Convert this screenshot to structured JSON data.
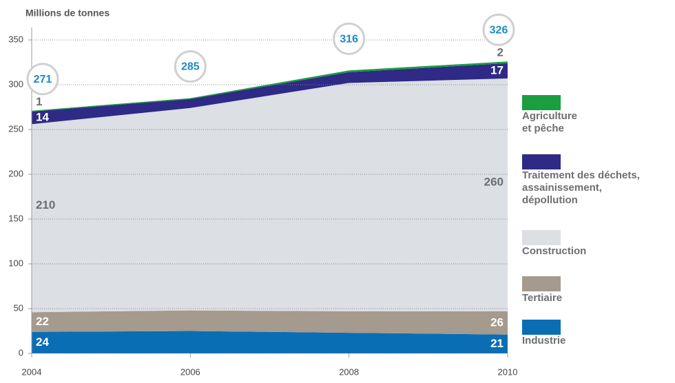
{
  "chart_data": {
    "type": "stacked-area",
    "y_label": "Millions de tonnes",
    "x": [
      2004,
      2006,
      2008,
      2010
    ],
    "xlim": [
      2004,
      2010
    ],
    "xticks": [
      2004,
      2006,
      2008,
      2010
    ],
    "ylim": [
      0,
      350
    ],
    "yticks": [
      0,
      50,
      100,
      150,
      200,
      250,
      300,
      350
    ],
    "grid": true,
    "totals": [
      271,
      285,
      316,
      326
    ],
    "series": [
      {
        "name": "Industrie",
        "color": "#0a6eb4",
        "values": [
          24,
          25,
          23,
          21
        ]
      },
      {
        "name": "Tertiaire",
        "color": "#a59a8e",
        "values": [
          22,
          23,
          24,
          26
        ]
      },
      {
        "name": "Construction",
        "color": "#dcdfe3",
        "values": [
          210,
          226,
          255,
          260
        ]
      },
      {
        "name": "Traitement des déchets,\nassainissement,\ndépollution",
        "color": "#2e2a86",
        "values": [
          14,
          10,
          12,
          17
        ]
      },
      {
        "name": "Agriculture\net pêche",
        "color": "#1a9e3f",
        "values": [
          1,
          1,
          2,
          2
        ]
      }
    ]
  }
}
